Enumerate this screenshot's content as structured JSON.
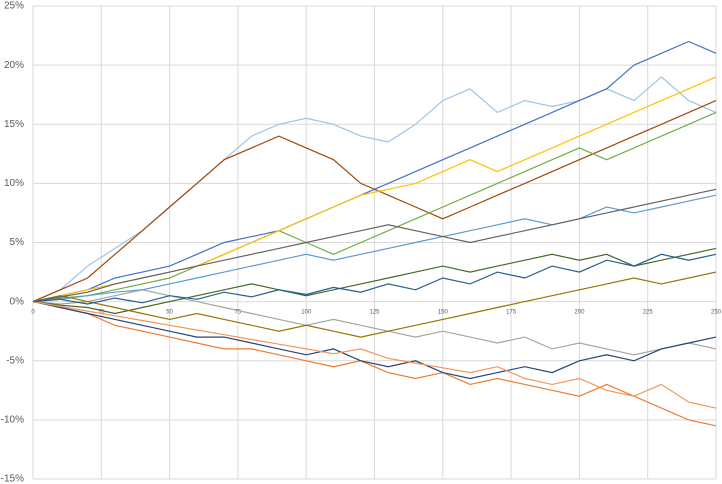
{
  "chart_data": {
    "type": "line",
    "x": [
      0,
      10,
      20,
      30,
      40,
      50,
      60,
      70,
      80,
      90,
      100,
      110,
      120,
      130,
      140,
      150,
      160,
      170,
      180,
      190,
      200,
      210,
      220,
      230,
      240,
      250
    ],
    "xlim": [
      0,
      250
    ],
    "xticks": [
      0,
      25,
      50,
      75,
      100,
      125,
      150,
      175,
      200,
      225,
      250
    ],
    "ylim": [
      -15,
      25
    ],
    "yticks": [
      {
        "value": -15,
        "label": "-15%"
      },
      {
        "value": -10,
        "label": "-10%"
      },
      {
        "value": -5,
        "label": "-5%"
      },
      {
        "value": 0,
        "label": "0%"
      },
      {
        "value": 5,
        "label": "5%"
      },
      {
        "value": 10,
        "label": "10%"
      },
      {
        "value": 15,
        "label": "15%"
      },
      {
        "value": 20,
        "label": "20%"
      },
      {
        "value": 25,
        "label": "25%"
      }
    ],
    "grid": true,
    "series": [
      {
        "color": "#9dc3e6",
        "values": [
          0,
          1,
          3,
          4.5,
          6,
          8,
          10,
          12,
          14,
          15,
          15.5,
          15,
          14,
          13.5,
          15,
          17,
          18,
          16,
          17,
          16.5,
          17,
          18,
          17,
          19,
          17,
          16
        ]
      },
      {
        "color": "#4472c4",
        "values": [
          0,
          0.5,
          1,
          2,
          2.5,
          3,
          4,
          5,
          5.5,
          6,
          7,
          8,
          9,
          10,
          11,
          12,
          13,
          14,
          15,
          16,
          17,
          18,
          20,
          21,
          22,
          21
        ]
      },
      {
        "color": "#ed7d31",
        "values": [
          0,
          -0.5,
          -1,
          -2,
          -2.5,
          -3,
          -3.5,
          -4,
          -4,
          -4.5,
          -5,
          -5.5,
          -5,
          -6,
          -6.5,
          -6,
          -7,
          -6.5,
          -7,
          -7.5,
          -8,
          -7,
          -8,
          -9,
          -10,
          -10.5
        ]
      },
      {
        "color": "#9e480e",
        "values": [
          0,
          1,
          2,
          4,
          6,
          8,
          10,
          12,
          13,
          14,
          13,
          12,
          10,
          9,
          8,
          7,
          8,
          9,
          10,
          11,
          12,
          13,
          14,
          15,
          16,
          17
        ]
      },
      {
        "color": "#70ad47",
        "values": [
          0,
          0.3,
          0.5,
          1,
          1.5,
          2,
          3,
          4,
          5,
          6,
          5,
          4,
          5,
          6,
          7,
          8,
          9,
          10,
          11,
          12,
          13,
          12,
          13,
          14,
          15,
          16
        ]
      },
      {
        "color": "#a5a5a5",
        "values": [
          0,
          -0.2,
          0,
          0.5,
          1,
          0.5,
          0,
          -0.5,
          -1,
          -1.5,
          -2,
          -1.5,
          -2,
          -2.5,
          -3,
          -2.5,
          -3,
          -3.5,
          -3,
          -4,
          -3.5,
          -4,
          -4.5,
          -4,
          -3.5,
          -4
        ]
      },
      {
        "color": "#ffc000",
        "values": [
          0,
          0.5,
          1,
          1.5,
          2,
          2.5,
          3,
          4,
          5,
          6,
          7,
          8,
          9,
          9.5,
          10,
          11,
          12,
          11,
          12,
          13,
          14,
          15,
          16,
          17,
          18,
          19
        ]
      },
      {
        "color": "#264478",
        "values": [
          0,
          -0.5,
          -1,
          -1.5,
          -2,
          -2.5,
          -3,
          -3,
          -3.5,
          -4,
          -4.5,
          -4,
          -5,
          -5.5,
          -5,
          -6,
          -6.5,
          -6,
          -5.5,
          -6,
          -5,
          -4.5,
          -5,
          -4,
          -3.5,
          -3
        ]
      },
      {
        "color": "#5b9bd5",
        "values": [
          0,
          0.2,
          0.5,
          0.8,
          1,
          1.5,
          2,
          2.5,
          3,
          3.5,
          4,
          3.5,
          4,
          4.5,
          5,
          5.5,
          6,
          6.5,
          7,
          6.5,
          7,
          8,
          7.5,
          8,
          8.5,
          9
        ]
      },
      {
        "color": "#43682b",
        "values": [
          0,
          -0.3,
          -0.5,
          -1,
          -0.5,
          0,
          0.5,
          1,
          1.5,
          1,
          0.5,
          1,
          1.5,
          2,
          2.5,
          3,
          2.5,
          3,
          3.5,
          4,
          3.5,
          4,
          3,
          3.5,
          4,
          4.5
        ]
      },
      {
        "color": "#997300",
        "values": [
          0,
          0.5,
          0,
          -0.5,
          -1,
          -1.5,
          -1,
          -1.5,
          -2,
          -2.5,
          -2,
          -2.5,
          -3,
          -2.5,
          -2,
          -1.5,
          -1,
          -0.5,
          0,
          0.5,
          1,
          1.5,
          2,
          1.5,
          2,
          2.5
        ]
      },
      {
        "color": "#636363",
        "values": [
          0,
          0.4,
          0.8,
          1.5,
          2,
          2.5,
          3,
          3.5,
          4,
          4.5,
          5,
          5.5,
          6,
          6.5,
          6,
          5.5,
          5,
          5.5,
          6,
          6.5,
          7,
          7.5,
          8,
          8.5,
          9,
          9.5
        ]
      },
      {
        "color": "#f1975a",
        "values": [
          0,
          -0.4,
          -0.8,
          -1.2,
          -1.6,
          -2,
          -2.4,
          -2.8,
          -3.2,
          -3.6,
          -4,
          -4.4,
          -4,
          -4.8,
          -5.2,
          -5.6,
          -6,
          -5.5,
          -6.5,
          -7,
          -6.5,
          -7.5,
          -8,
          -7,
          -8.5,
          -9
        ]
      },
      {
        "color": "#255e91",
        "values": [
          0,
          0.2,
          -0.2,
          0.3,
          -0.1,
          0.5,
          0.2,
          0.8,
          0.4,
          1,
          0.6,
          1.2,
          0.8,
          1.5,
          1,
          2,
          1.5,
          2.5,
          2,
          3,
          2.5,
          3.5,
          3,
          4,
          3.5,
          4
        ]
      }
    ]
  }
}
